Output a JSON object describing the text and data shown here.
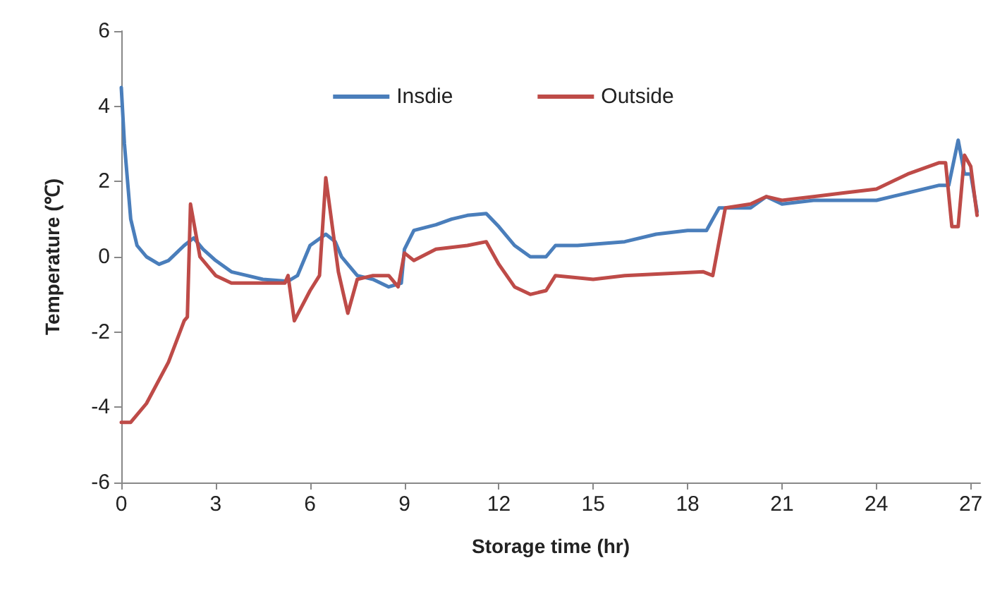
{
  "chart_data": {
    "type": "line",
    "xlabel": "Storage time (hr)",
    "ylabel": "Temperature (℃)",
    "xlim": [
      0,
      27.3
    ],
    "xticks": [
      0,
      3,
      6,
      9,
      12,
      15,
      18,
      21,
      24,
      27
    ],
    "ylim": [
      -6,
      6
    ],
    "yticks": [
      -6,
      -4,
      -2,
      0,
      2,
      4,
      6
    ],
    "grid": false,
    "legend": "top",
    "marker": "none",
    "line_style": "solid",
    "series": [
      {
        "name": "Insdie",
        "color": "#4a7ebb",
        "x": [
          0,
          0.1,
          0.3,
          0.5,
          0.8,
          1.2,
          1.5,
          2,
          2.3,
          2.6,
          3,
          3.5,
          4,
          4.5,
          5.3,
          5.6,
          6,
          6.5,
          6.8,
          7,
          7.5,
          8,
          8.5,
          8.9,
          9,
          9.3,
          10,
          10.5,
          11,
          11.6,
          12,
          12.5,
          13,
          13.5,
          13.8,
          14.5,
          16,
          17,
          18,
          18.6,
          19,
          20,
          20.5,
          21,
          22,
          24,
          25,
          26,
          26.3,
          26.6,
          26.8,
          27,
          27.2
        ],
        "values": [
          4.5,
          3,
          1,
          0.3,
          0,
          -0.2,
          -0.1,
          0.3,
          0.5,
          0.2,
          -0.1,
          -0.4,
          -0.5,
          -0.6,
          -0.65,
          -0.5,
          0.3,
          0.6,
          0.4,
          0,
          -0.5,
          -0.6,
          -0.8,
          -0.7,
          0.2,
          0.7,
          0.85,
          1,
          1.1,
          1.15,
          0.8,
          0.3,
          0,
          0,
          0.3,
          0.3,
          0.4,
          0.6,
          0.7,
          0.7,
          1.3,
          1.3,
          1.6,
          1.4,
          1.5,
          1.5,
          1.7,
          1.9,
          1.9,
          3.1,
          2.2,
          2.2,
          1.2
        ]
      },
      {
        "name": "Outside",
        "color": "#be4b48",
        "x": [
          0,
          0.3,
          0.8,
          1.5,
          2,
          2.1,
          2.2,
          2.5,
          3,
          3.5,
          5.2,
          5.3,
          5.5,
          6,
          6.3,
          6.5,
          6.9,
          7.2,
          7.5,
          8,
          8.5,
          8.8,
          9,
          9.3,
          10,
          11,
          11.6,
          12,
          12.5,
          13,
          13.5,
          13.8,
          15,
          16,
          18.5,
          18.8,
          19.2,
          20,
          20.5,
          21,
          22,
          23,
          24,
          25,
          26,
          26.2,
          26.4,
          26.6,
          26.8,
          27,
          27.2
        ],
        "values": [
          -4.4,
          -4.4,
          -3.9,
          -2.8,
          -1.7,
          -1.6,
          1.4,
          0,
          -0.5,
          -0.7,
          -0.7,
          -0.5,
          -1.7,
          -0.9,
          -0.5,
          2.1,
          -0.4,
          -1.5,
          -0.6,
          -0.5,
          -0.5,
          -0.8,
          0.1,
          -0.1,
          0.2,
          0.3,
          0.4,
          -0.2,
          -0.8,
          -1,
          -0.9,
          -0.5,
          -0.6,
          -0.5,
          -0.4,
          -0.5,
          1.3,
          1.4,
          1.6,
          1.5,
          1.6,
          1.7,
          1.8,
          2.2,
          2.5,
          2.5,
          0.8,
          0.8,
          2.7,
          2.4,
          1.1
        ]
      }
    ]
  }
}
